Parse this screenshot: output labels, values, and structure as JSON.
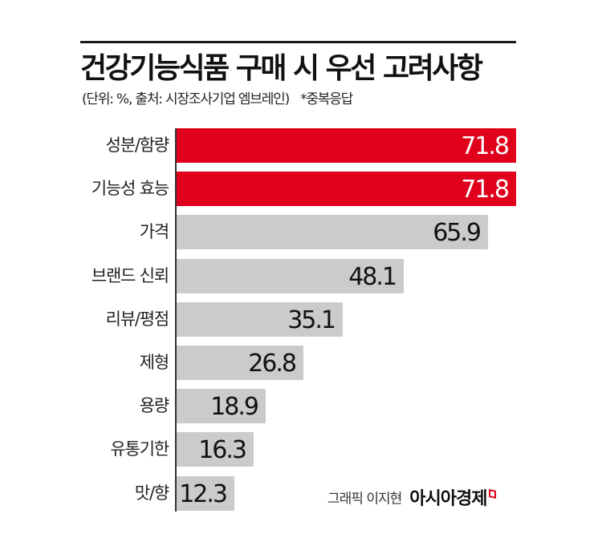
{
  "header": {
    "title": "건강기능식품 구매 시 우선 고려사항",
    "subtitle": "(단위: %, 출처: 시장조사기업 엠브레인)",
    "note": "*중복응답"
  },
  "footer": {
    "credit": "그래픽 이지현",
    "publisher": "아시아경제"
  },
  "colors": {
    "highlight": "#e0001b",
    "bar": "#cbcbcc",
    "axis": "#333333"
  },
  "chart_data": {
    "type": "bar",
    "orientation": "horizontal",
    "title": "건강기능식품 구매 시 우선 고려사항",
    "subtitle": "(단위: %, 출처: 시장조사기업 엠브레인) *중복응답",
    "xlabel": "",
    "ylabel": "",
    "unit": "%",
    "categories": [
      "성분/함량",
      "기능성 효능",
      "가격",
      "브랜드 신뢰",
      "리뷰/평점",
      "제형",
      "용량",
      "유통기한",
      "맛/향"
    ],
    "values": [
      71.8,
      71.8,
      65.9,
      48.1,
      35.1,
      26.8,
      18.9,
      16.3,
      12.3
    ],
    "value_labels": [
      "71.8",
      "71.8",
      "65.9",
      "48.1",
      "35.1",
      "26.8",
      "18.9",
      "16.3",
      "12.3"
    ],
    "highlighted": [
      true,
      true,
      false,
      false,
      false,
      false,
      false,
      false,
      false
    ],
    "xlim": [
      0,
      71.8
    ],
    "grid": false,
    "legend": null
  }
}
